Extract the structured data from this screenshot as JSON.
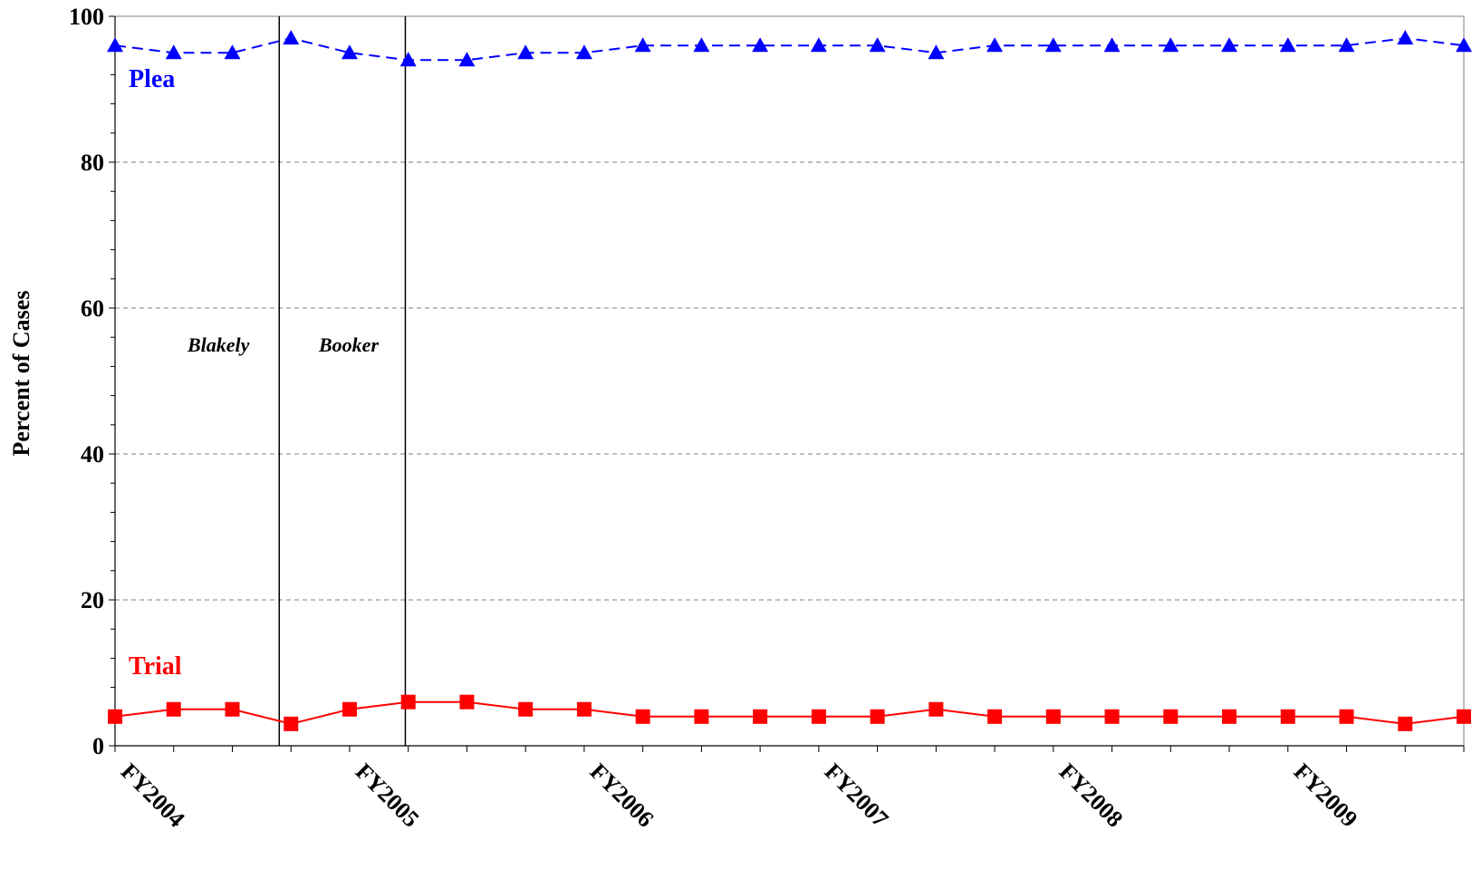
{
  "chart_data": {
    "type": "line",
    "ylabel": "Percent of Cases",
    "ylim": [
      0,
      100
    ],
    "yticks": [
      0,
      20,
      40,
      60,
      80,
      100
    ],
    "grid": "horizontal dashed",
    "x_year_labels": [
      "FY2004",
      "FY2005",
      "FY2006",
      "FY2007",
      "FY2008",
      "FY2009"
    ],
    "series": [
      {
        "name": "Plea",
        "color": "#0000ff",
        "line_style": "dashed",
        "marker": "triangle",
        "values": [
          96,
          95,
          95,
          97,
          95,
          94,
          94,
          95,
          95,
          96,
          96,
          96,
          96,
          96,
          95,
          96,
          96,
          96,
          96,
          96,
          96,
          96,
          97,
          96
        ]
      },
      {
        "name": "Trial",
        "color": "#ff0000",
        "line_style": "solid",
        "marker": "square",
        "values": [
          4,
          5,
          5,
          3,
          5,
          6,
          6,
          5,
          5,
          4,
          4,
          4,
          4,
          4,
          5,
          4,
          4,
          4,
          4,
          4,
          4,
          4,
          3,
          4
        ]
      }
    ],
    "events": [
      {
        "label": "Blakely"
      },
      {
        "label": "Booker"
      }
    ]
  }
}
